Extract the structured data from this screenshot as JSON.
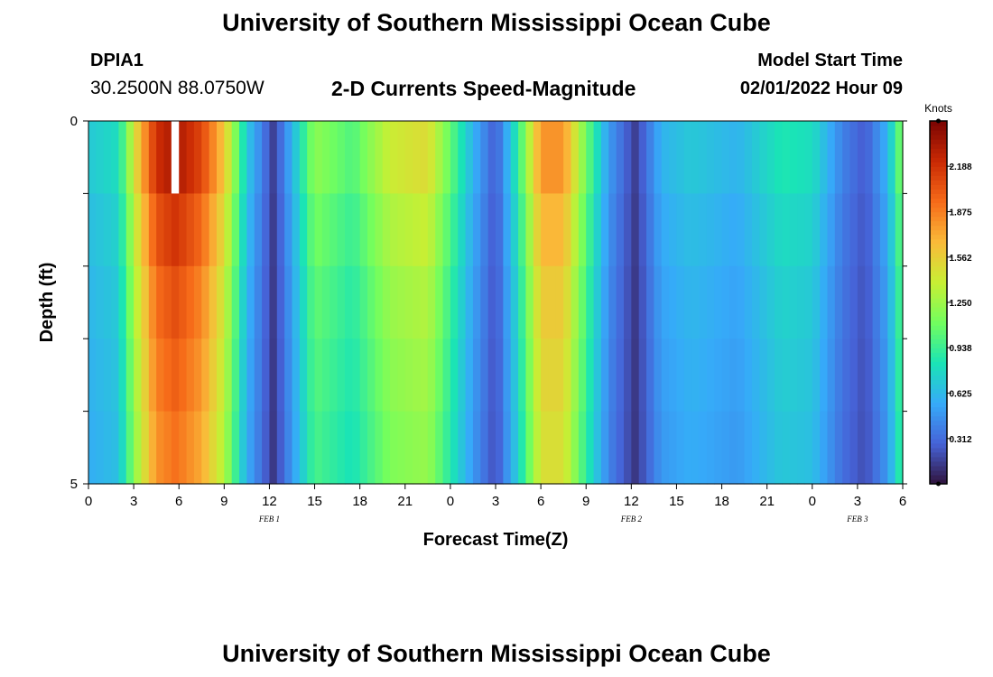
{
  "header": {
    "title": "University of Southern Mississippi Ocean Cube",
    "station_id": "DPIA1",
    "coordinates": "30.2500N  88.0750W",
    "subtitle": "2-D Currents Speed-Magnitude",
    "start_label": "Model Start Time",
    "start_value": "02/01/2022 Hour 09"
  },
  "footer": {
    "title": "University of Southern Mississippi Ocean Cube"
  },
  "chart_data": {
    "type": "heatmap",
    "title": "2-D Currents Speed-Magnitude",
    "xlabel": "Forecast Time(Z)",
    "ylabel": "Depth (ft)",
    "x_unit": "hours from 00Z FEB 1",
    "xlim": [
      0,
      54
    ],
    "ylim": [
      0,
      5
    ],
    "x_ticks": [
      0,
      3,
      6,
      9,
      12,
      15,
      18,
      21,
      24,
      27,
      30,
      33,
      36,
      39,
      42,
      45,
      48,
      51,
      54
    ],
    "x_tick_labels": [
      "0",
      "3",
      "6",
      "9",
      "12",
      "15",
      "18",
      "21",
      "0",
      "3",
      "6",
      "9",
      "12",
      "15",
      "18",
      "21",
      "0",
      "3",
      "6"
    ],
    "y_ticks": [
      0,
      5
    ],
    "y_tick_labels": [
      "0",
      "5"
    ],
    "date_labels": [
      {
        "text": "FEB 1",
        "hour": 12
      },
      {
        "text": "FEB 2",
        "hour": 36
      },
      {
        "text": "FEB 3",
        "hour": 51
      }
    ],
    "depth_levels": [
      0,
      1,
      2,
      3,
      4,
      5
    ],
    "missing_cells": [
      {
        "hour": 5.5,
        "layer": 0
      }
    ],
    "key_points": [
      {
        "hour": 0,
        "speed": 0.7
      },
      {
        "hour": 2,
        "speed": 0.8
      },
      {
        "hour": 3.3,
        "speed": 1.6
      },
      {
        "hour": 4.5,
        "speed": 2.2
      },
      {
        "hour": 5.8,
        "speed": 2.35
      },
      {
        "hour": 7.5,
        "speed": 2.1
      },
      {
        "hour": 9,
        "speed": 1.6
      },
      {
        "hour": 10.5,
        "speed": 0.7
      },
      {
        "hour": 12.3,
        "speed": 0.15
      },
      {
        "hour": 13.5,
        "speed": 0.6
      },
      {
        "hour": 15,
        "speed": 1.2
      },
      {
        "hour": 17.5,
        "speed": 1.0
      },
      {
        "hour": 20,
        "speed": 1.4
      },
      {
        "hour": 22.5,
        "speed": 1.5
      },
      {
        "hour": 24.2,
        "speed": 1.0
      },
      {
        "hour": 25.5,
        "speed": 0.6
      },
      {
        "hour": 27,
        "speed": 0.25
      },
      {
        "hour": 28.5,
        "speed": 0.9
      },
      {
        "hour": 30,
        "speed": 1.8
      },
      {
        "hour": 31.5,
        "speed": 1.8
      },
      {
        "hour": 33,
        "speed": 1.1
      },
      {
        "hour": 34.5,
        "speed": 0.5
      },
      {
        "hour": 36.3,
        "speed": 0.15
      },
      {
        "hour": 38,
        "speed": 0.6
      },
      {
        "hour": 40,
        "speed": 0.7
      },
      {
        "hour": 43,
        "speed": 0.6
      },
      {
        "hour": 46,
        "speed": 0.85
      },
      {
        "hour": 48,
        "speed": 0.8
      },
      {
        "hour": 50,
        "speed": 0.4
      },
      {
        "hour": 51.5,
        "speed": 0.25
      },
      {
        "hour": 53,
        "speed": 0.6
      },
      {
        "hour": 54,
        "speed": 1.2
      }
    ],
    "layer_scale": [
      1.0,
      0.93,
      0.88,
      0.85,
      0.82
    ],
    "colorbar": {
      "label": "Knots",
      "min": 0,
      "max": 2.5,
      "ticks": [
        "0.312",
        "0.625",
        "0.938",
        "1.250",
        "1.562",
        "1.875",
        "2.188"
      ],
      "colors": [
        "#30123b",
        "#4662d7",
        "#36aaf9",
        "#1ae4b6",
        "#72fe5e",
        "#c8ef34",
        "#faba39",
        "#f66b19",
        "#ca2a04",
        "#7a0403"
      ]
    }
  }
}
